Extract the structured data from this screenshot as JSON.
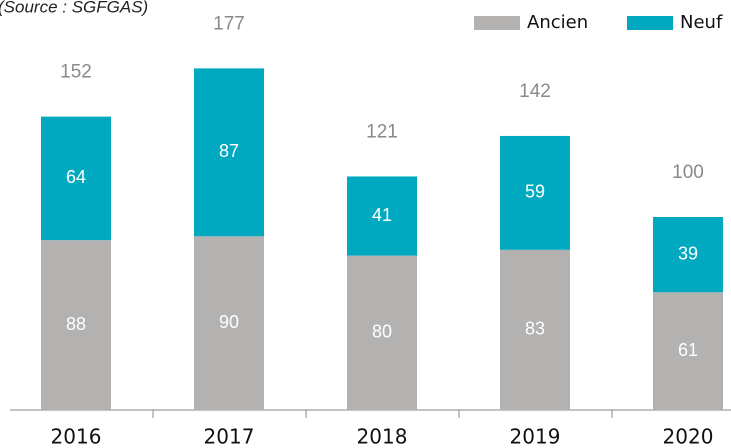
{
  "chart_data": {
    "type": "stacked_bar",
    "source": "(Source : SGFGAS)",
    "categories": [
      "2016",
      "2017",
      "2018",
      "2019",
      "2020"
    ],
    "series": [
      {
        "name": "Ancien",
        "color": "#b3b2b0",
        "values": [
          88,
          90,
          80,
          83,
          61
        ]
      },
      {
        "name": "Neuf",
        "color": "#00a9c0",
        "values": [
          64,
          87,
          41,
          59,
          39
        ]
      }
    ],
    "totals": [
      152,
      177,
      121,
      142,
      100
    ],
    "ylim": [
      0,
      200
    ]
  }
}
